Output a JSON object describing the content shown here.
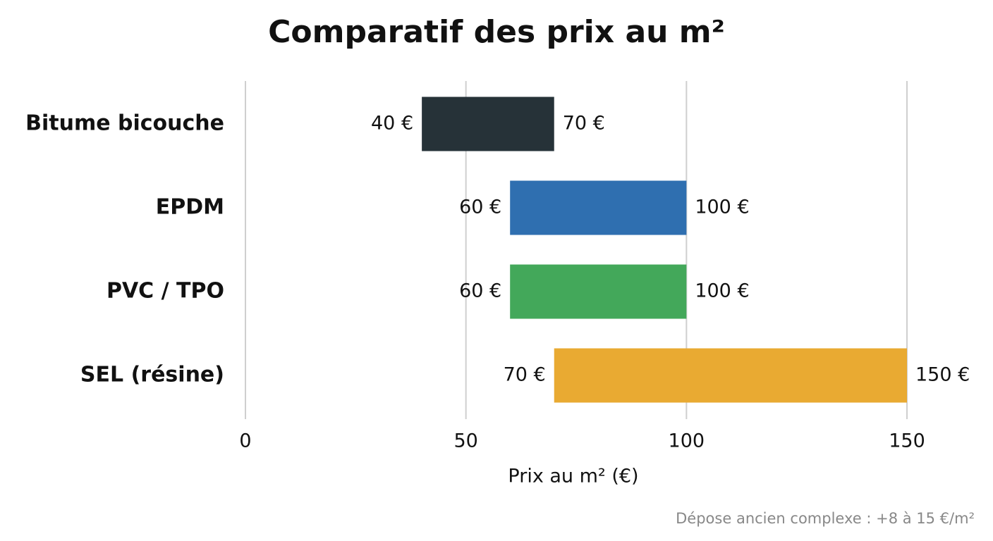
{
  "chart_data": {
    "type": "range-bar",
    "title": "Comparatif des prix au m²",
    "categories": [
      "Bitume bicouche",
      "EPDM",
      "PVC / TPO",
      "SEL (résine)"
    ],
    "values": [
      [
        40,
        70
      ],
      [
        60,
        100
      ],
      [
        60,
        100
      ],
      [
        70,
        150
      ]
    ],
    "value_labels": [
      [
        "40 €",
        "70 €"
      ],
      [
        "60 €",
        "100 €"
      ],
      [
        "60 €",
        "100 €"
      ],
      [
        "70 €",
        "150 €"
      ]
    ],
    "colors": [
      "#263238",
      "#2f6fb0",
      "#43a85a",
      "#e9aa32"
    ],
    "xlim": [
      0,
      150
    ],
    "xticks": [
      0,
      50,
      100,
      150
    ],
    "grid": true,
    "xlabel": "Prix au m² (€)",
    "note": "Dépose ancien complexe : +8 à 15 €/m²"
  }
}
